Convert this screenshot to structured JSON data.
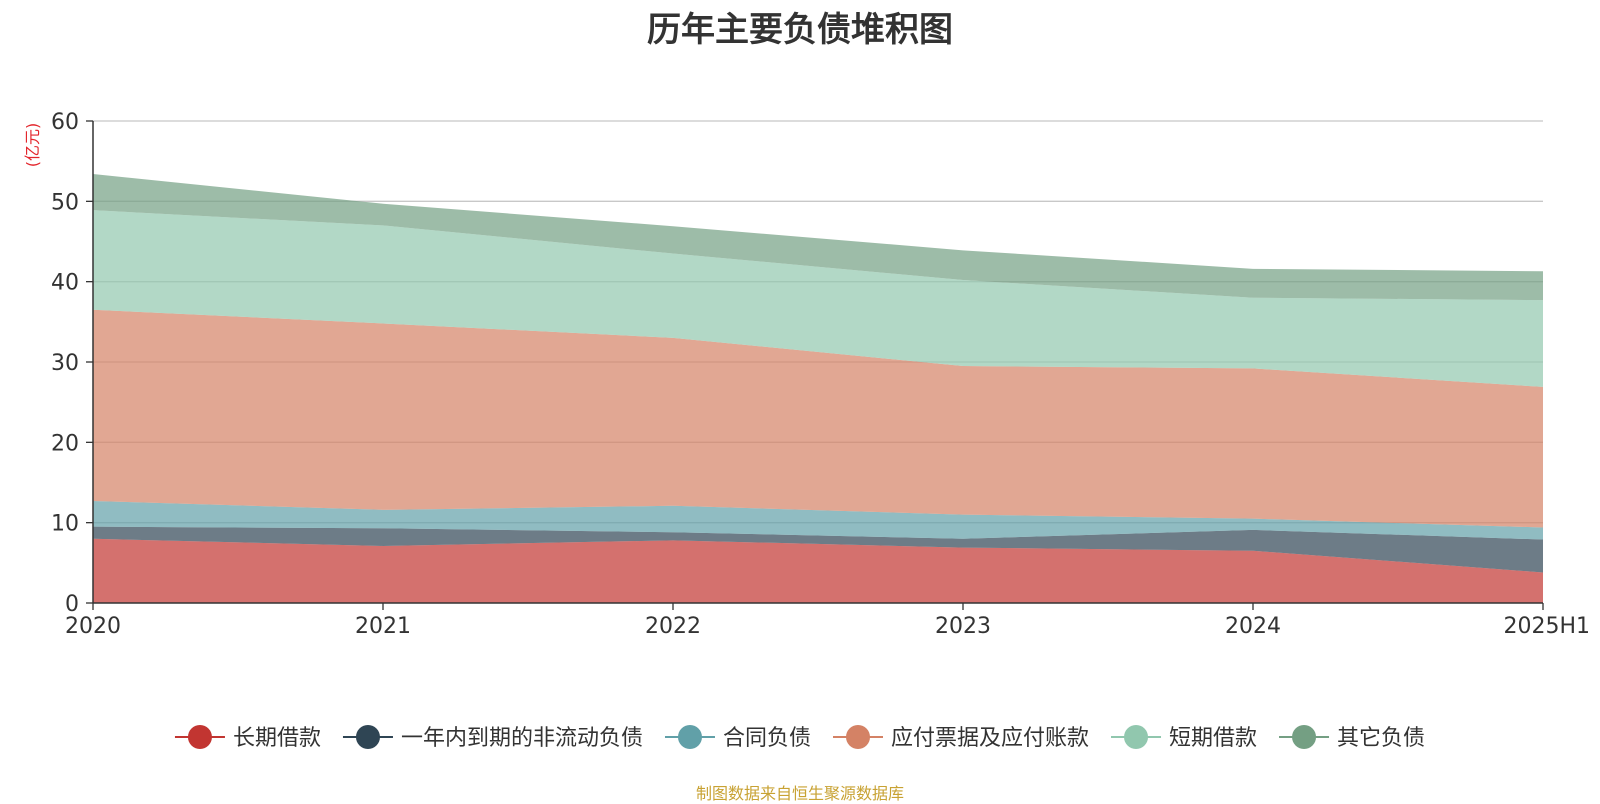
{
  "chart_data": {
    "type": "area",
    "stacked": true,
    "title": "历年主要负债堆积图",
    "unit_label": "(亿元)",
    "categories": [
      "2020",
      "2021",
      "2022",
      "2023",
      "2024",
      "2025H1"
    ],
    "ylim": [
      0,
      60
    ],
    "yticks": [
      0,
      10,
      20,
      30,
      40,
      50,
      60
    ],
    "grid": true,
    "legend_position": "bottom",
    "series": [
      {
        "name": "长期借款",
        "color": "#c23531",
        "values": [
          8.0,
          7.1,
          7.8,
          6.9,
          6.5,
          3.8
        ]
      },
      {
        "name": "一年内到期的非流动负债",
        "color": "#2f4554",
        "values": [
          1.5,
          2.2,
          1.0,
          1.1,
          2.6,
          4.1
        ]
      },
      {
        "name": "合同负债",
        "color": "#61a0a8",
        "values": [
          3.2,
          2.3,
          3.3,
          3.0,
          1.4,
          1.5
        ]
      },
      {
        "name": "应付票据及应付账款",
        "color": "#d48265",
        "values": [
          23.8,
          23.2,
          20.9,
          18.5,
          18.7,
          17.5
        ]
      },
      {
        "name": "短期借款",
        "color": "#91c7ae",
        "values": [
          12.4,
          12.2,
          10.5,
          10.7,
          8.8,
          10.8
        ]
      },
      {
        "name": "其它负债",
        "color": "#749f83",
        "values": [
          4.5,
          2.7,
          3.4,
          3.7,
          3.6,
          3.6
        ]
      }
    ]
  },
  "source_note": "制图数据来自恒生聚源数据库"
}
